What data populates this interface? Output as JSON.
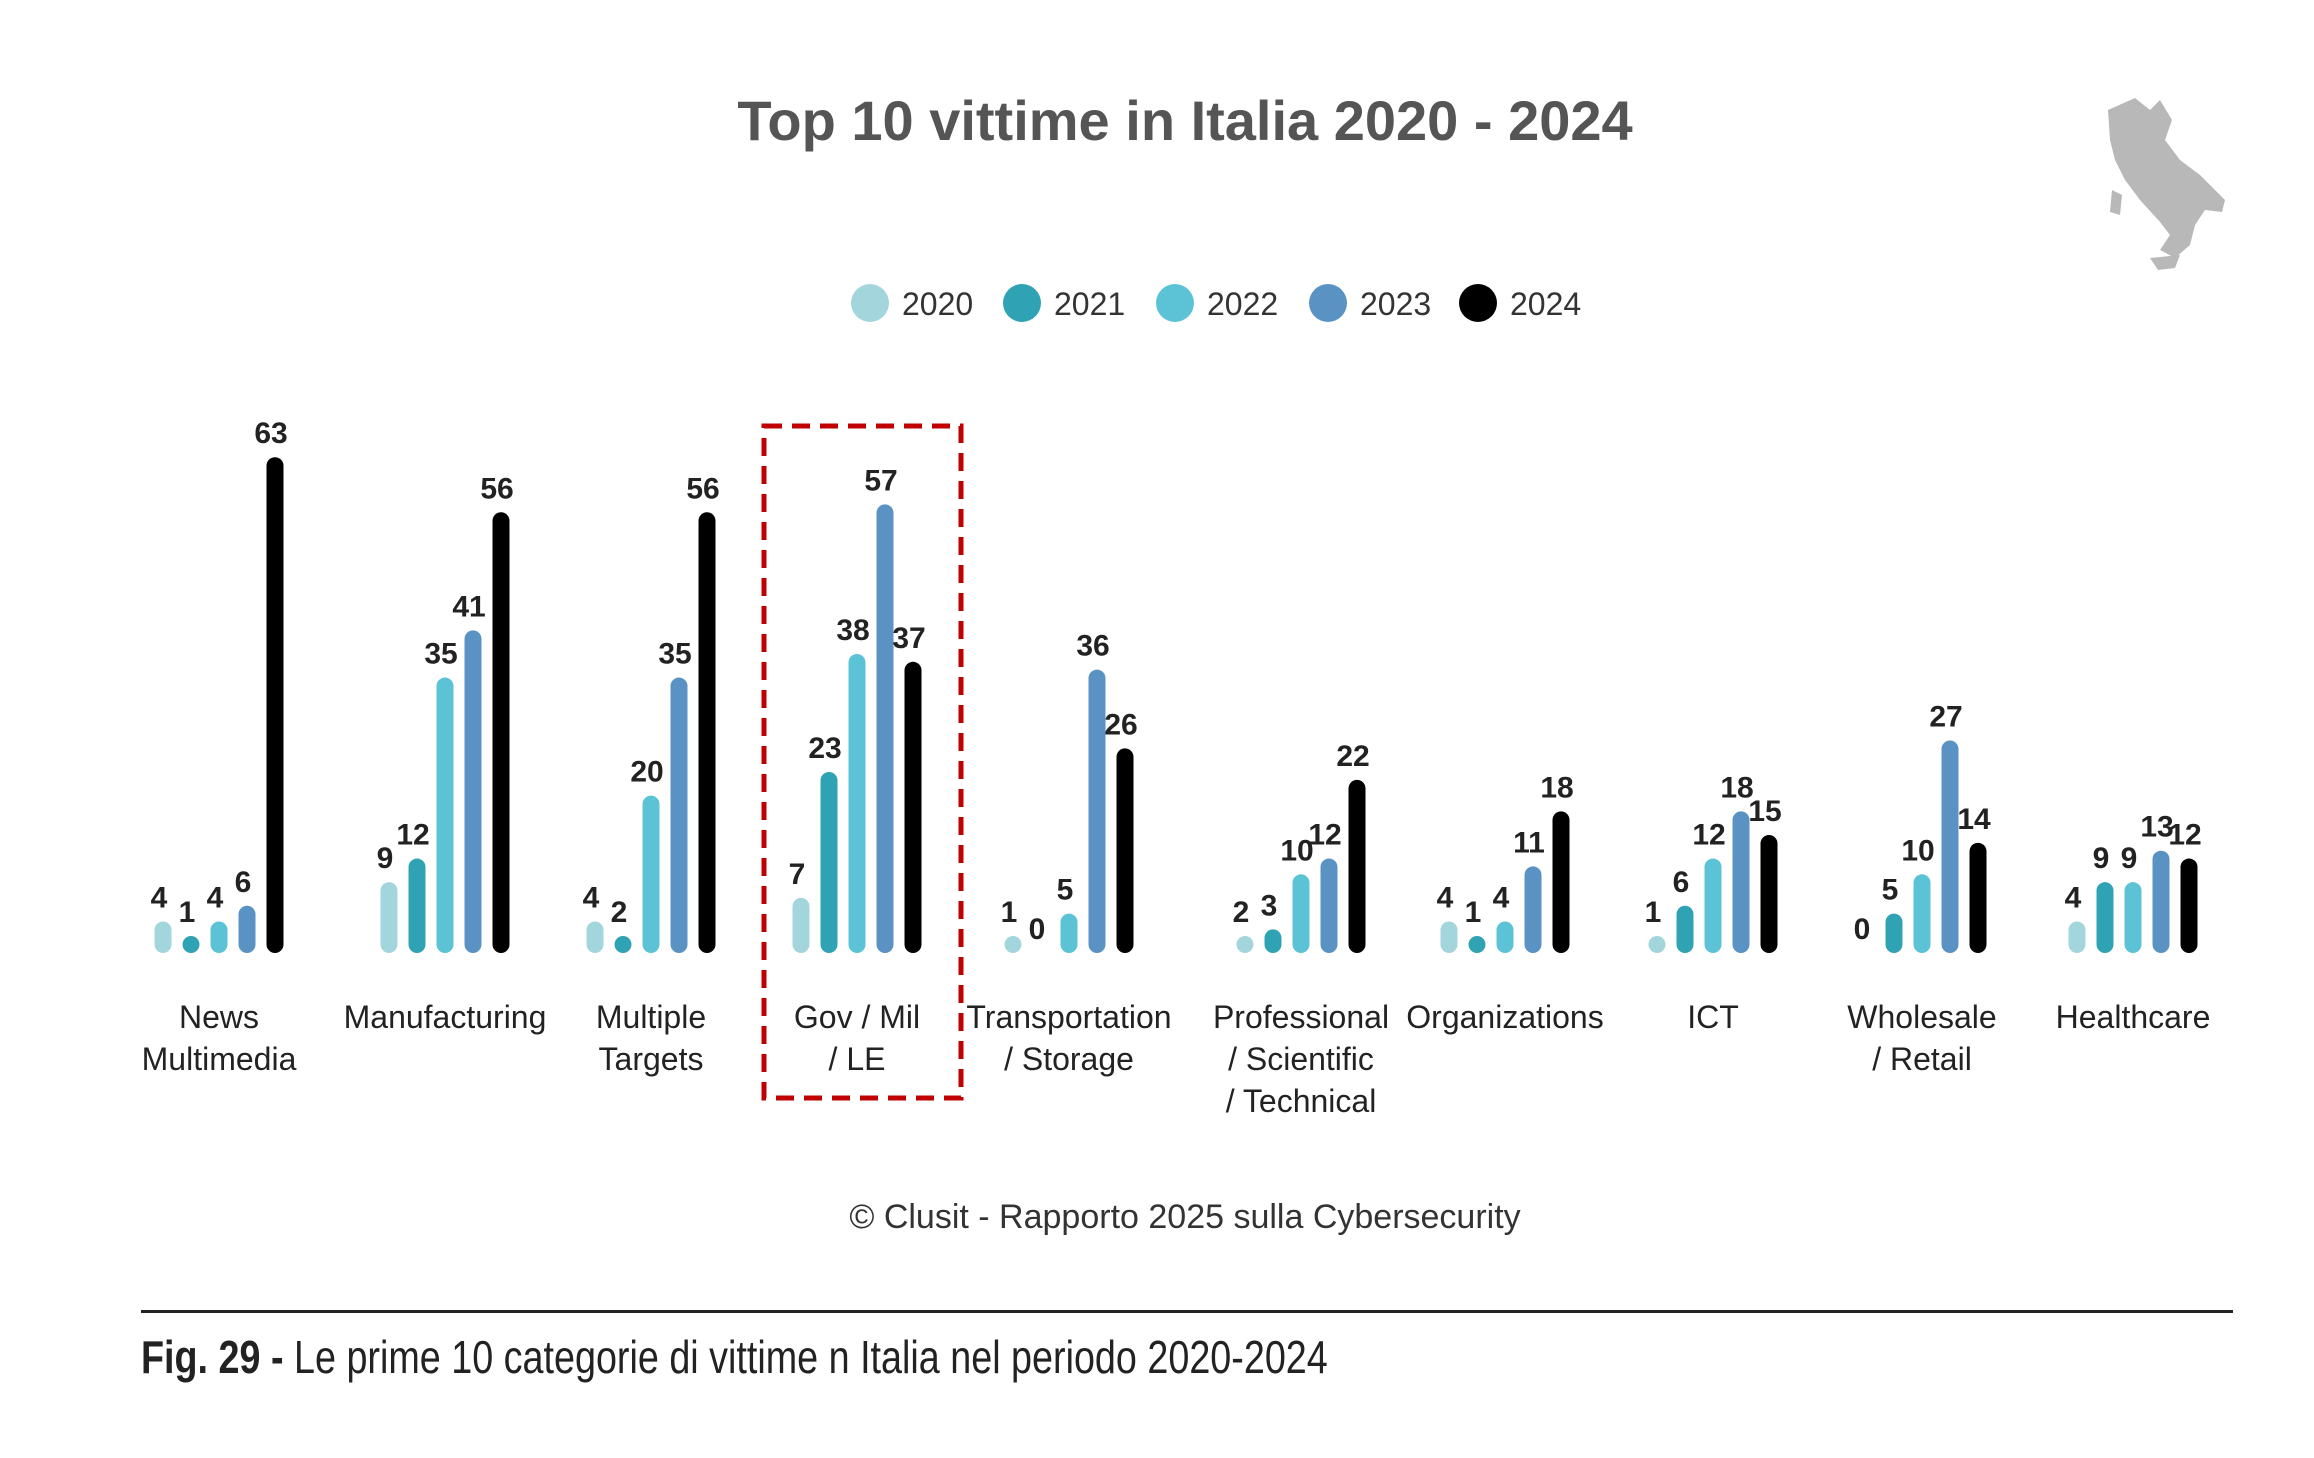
{
  "chart_data": {
    "type": "bar",
    "title": "Top 10 vittime in Italia 2020 - 2024",
    "categories": [
      [
        "News",
        "Multimedia"
      ],
      [
        "Manufacturing"
      ],
      [
        "Multiple",
        "Targets"
      ],
      [
        "Gov / Mil",
        "/ LE"
      ],
      [
        "Transportation",
        "/ Storage"
      ],
      [
        "Professional",
        "/ Scientific",
        "/ Technical"
      ],
      [
        "Organizations"
      ],
      [
        "ICT"
      ],
      [
        "Wholesale",
        "/ Retail"
      ],
      [
        "Healthcare"
      ]
    ],
    "series": [
      {
        "name": "2020",
        "color": "#a3d6dc",
        "values": [
          4,
          9,
          4,
          7,
          1,
          2,
          4,
          1,
          0,
          4
        ]
      },
      {
        "name": "2021",
        "color": "#2fa3b3",
        "values": [
          1,
          12,
          2,
          23,
          0,
          3,
          1,
          6,
          5,
          9
        ]
      },
      {
        "name": "2022",
        "color": "#5cc3d6",
        "values": [
          4,
          35,
          20,
          38,
          5,
          10,
          4,
          12,
          10,
          9
        ]
      },
      {
        "name": "2023",
        "color": "#5a93c3",
        "values": [
          6,
          41,
          35,
          57,
          36,
          12,
          11,
          18,
          27,
          13
        ]
      },
      {
        "name": "2024",
        "color": "#000000",
        "values": [
          63,
          56,
          56,
          37,
          26,
          22,
          18,
          15,
          14,
          12
        ]
      }
    ],
    "legend_position": "top-center",
    "highlighted_category": "Gov / Mil / LE",
    "highlight_color": "#c00000",
    "grid": false,
    "ylim": [
      0,
      65
    ],
    "source": "© Clusit - Rapporto 2025 sulla Cybersecurity"
  },
  "decoration": {
    "icon": "italy-map-icon",
    "color": "#b5b5b5"
  },
  "caption": {
    "label": "Fig. 29 -",
    "text": " Le prime 10 categorie di vittime n Italia nel periodo 2020-2024"
  }
}
